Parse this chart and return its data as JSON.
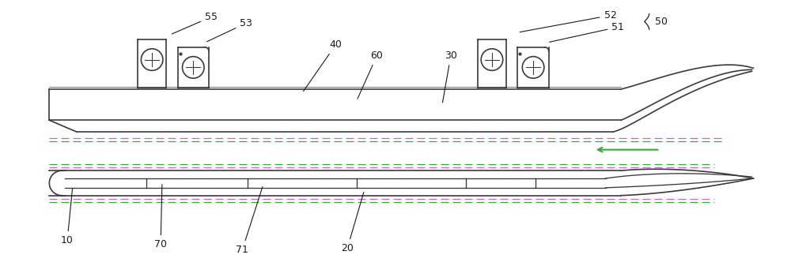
{
  "bg_color": "#ffffff",
  "line_color": "#3a3a3a",
  "dashed_color_pink": "#cc66cc",
  "dashed_color_green": "#33aa33",
  "arrow_color": "#33aa33",
  "figsize": [
    10.0,
    3.37
  ],
  "dpi": 100
}
